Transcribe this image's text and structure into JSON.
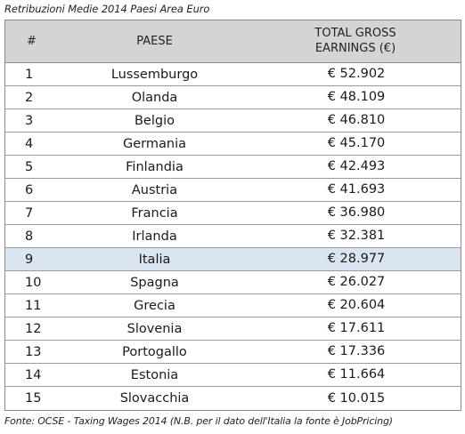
{
  "caption": "Retribuzioni Medie 2014 Paesi Area Euro",
  "headers": {
    "num": "#",
    "country": "PAESE",
    "earnings_line1": "TOTAL GROSS",
    "earnings_line2": "EARNINGS (€)"
  },
  "rows": [
    {
      "num": "1",
      "country": "Lussemburgo",
      "earnings": "€ 52.902"
    },
    {
      "num": "2",
      "country": "Olanda",
      "earnings": "€ 48.109"
    },
    {
      "num": "3",
      "country": "Belgio",
      "earnings": "€ 46.810"
    },
    {
      "num": "4",
      "country": "Germania",
      "earnings": "€ 45.170"
    },
    {
      "num": "5",
      "country": "Finlandia",
      "earnings": "€ 42.493"
    },
    {
      "num": "6",
      "country": "Austria",
      "earnings": "€ 41.693"
    },
    {
      "num": "7",
      "country": "Francia",
      "earnings": "€ 36.980"
    },
    {
      "num": "8",
      "country": "Irlanda",
      "earnings": "€ 32.381"
    },
    {
      "num": "9",
      "country": "Italia",
      "earnings": "€ 28.977",
      "highlight": true
    },
    {
      "num": "10",
      "country": "Spagna",
      "earnings": "€ 26.027"
    },
    {
      "num": "11",
      "country": "Grecia",
      "earnings": "€ 20.604"
    },
    {
      "num": "12",
      "country": "Slovenia",
      "earnings": "€ 17.611"
    },
    {
      "num": "13",
      "country": "Portogallo",
      "earnings": "€ 17.336"
    },
    {
      "num": "14",
      "country": "Estonia",
      "earnings": "€ 11.664"
    },
    {
      "num": "15",
      "country": "Slovacchia",
      "earnings": "€ 10.015"
    }
  ],
  "footer": "Fonte: OCSE - Taxing Wages 2014 (N.B. per il dato dell'Italia la fonte è JobPricing)",
  "colors": {
    "header_bg": "#d4d4d4",
    "highlight_bg": "#dbe5f1",
    "border": "#8a8a8a"
  }
}
